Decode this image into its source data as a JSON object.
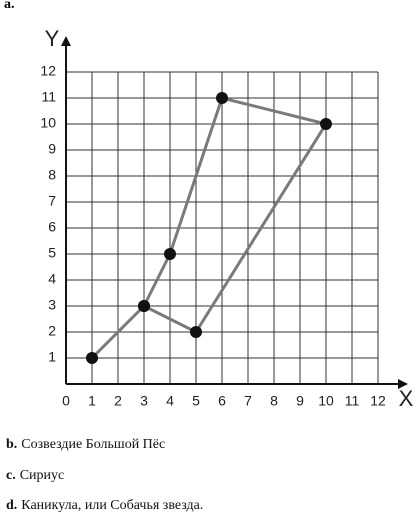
{
  "label": "a.",
  "chart_data": {
    "type": "line",
    "x": [
      1,
      3,
      4,
      6,
      10,
      5,
      3
    ],
    "values": [
      1,
      3,
      5,
      11,
      10,
      2,
      3
    ],
    "color": "#7a7a7a",
    "marker_color": "#111111",
    "xlabel": "X",
    "ylabel": "Y",
    "xlim": [
      0,
      12
    ],
    "ylim": [
      0,
      12
    ],
    "xticks": [
      0,
      1,
      2,
      3,
      4,
      5,
      6,
      7,
      8,
      9,
      10,
      11,
      12
    ],
    "yticks": [
      1,
      2,
      3,
      4,
      5,
      6,
      7,
      8,
      9,
      10,
      11,
      12
    ],
    "grid": true
  },
  "answers": [
    {
      "label": "b.",
      "text": "Созвездие Большой Пёс"
    },
    {
      "label": "c.",
      "text": "Сириус"
    },
    {
      "label": "d.",
      "text": "Каникула, или Собачья звезда."
    }
  ]
}
